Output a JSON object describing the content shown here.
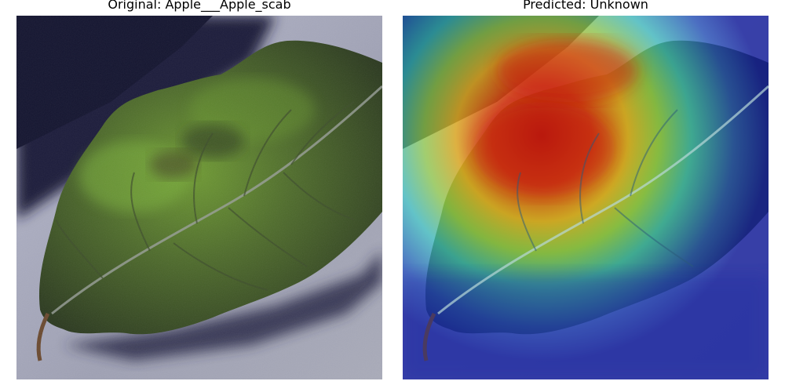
{
  "figure": {
    "panels": [
      {
        "title": "Original: Apple___Apple_scab",
        "image": "apple-leaf-photo"
      },
      {
        "title": "Predicted: Unknown",
        "image": "gradcam-heatmap-overlay"
      }
    ],
    "colors": {
      "background_surface": "#9a9cad",
      "shadow": "#1c1e3a",
      "leaf_dark": "#2f3d22",
      "leaf_mid": "#4e6a2c",
      "leaf_light": "#7fae3a",
      "heat_red": "#c8180a",
      "heat_yellow": "#e6d22a",
      "heat_cyan": "#3ad2c8",
      "heat_blue": "#1a2aa0"
    }
  }
}
